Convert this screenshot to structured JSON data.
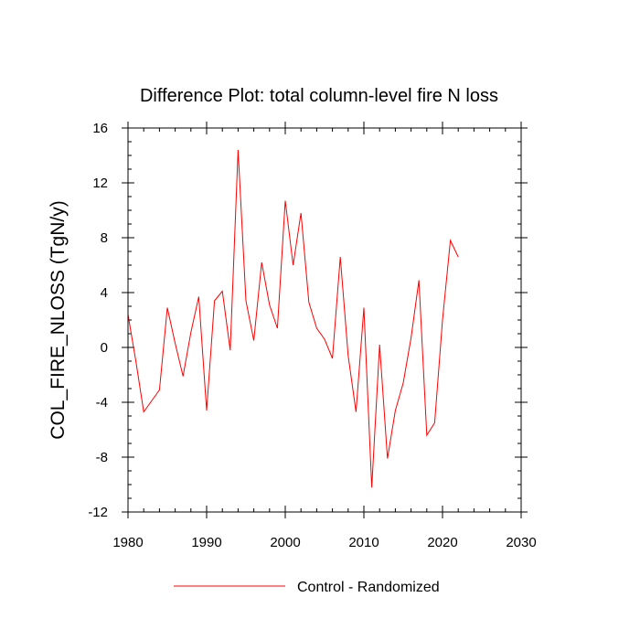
{
  "chart_data": {
    "type": "line",
    "title": "Difference Plot: total column-level fire N loss",
    "xlabel": "",
    "ylabel": "COL_FIRE_NLOSS  (TgN/y)",
    "xlim": [
      1980,
      2030
    ],
    "ylim": [
      -12,
      16
    ],
    "xticks": [
      1980,
      1990,
      2000,
      2010,
      2020,
      2030
    ],
    "yticks": [
      -12,
      -8,
      -4,
      0,
      4,
      8,
      12,
      16
    ],
    "xtick_labels": [
      "1980",
      "1990",
      "2000",
      "2010",
      "2020",
      "2030"
    ],
    "ytick_labels": [
      "-12",
      "-8",
      "-4",
      "0",
      "4",
      "8",
      "12",
      "16"
    ],
    "grid": false,
    "legend_position": "bottom-center",
    "series": [
      {
        "name": "Control - Randomized",
        "color": "#ff0000",
        "x": [
          1980,
          1981,
          1982,
          1983,
          1984,
          1985,
          1986,
          1987,
          1988,
          1989,
          1990,
          1991,
          1992,
          1993,
          1994,
          1995,
          1996,
          1997,
          1998,
          1999,
          2000,
          2001,
          2002,
          2003,
          2004,
          2005,
          2006,
          2007,
          2008,
          2009,
          2010,
          2011,
          2012,
          2013,
          2014,
          2015,
          2016,
          2017,
          2018,
          2019,
          2020,
          2021,
          2022
        ],
        "y": [
          2.4,
          -1.0,
          -4.7,
          -3.9,
          -3.1,
          2.9,
          0.3,
          -2.1,
          1.1,
          3.7,
          -4.6,
          3.4,
          4.1,
          -0.2,
          14.4,
          3.4,
          0.5,
          6.2,
          3.1,
          1.4,
          10.7,
          6.0,
          9.8,
          3.3,
          1.4,
          0.6,
          -0.8,
          6.6,
          -0.6,
          -4.7,
          2.9,
          -10.2,
          0.2,
          -8.1,
          -4.6,
          -2.6,
          0.7,
          4.9,
          -6.4,
          -5.5,
          2.0,
          7.8,
          6.6
        ]
      }
    ]
  }
}
